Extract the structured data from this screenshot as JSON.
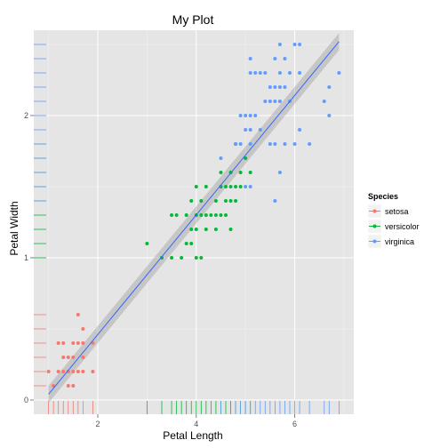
{
  "chart_data": {
    "type": "scatter",
    "title": "My Plot",
    "xlabel": "Petal Length",
    "ylabel": "Petal Width",
    "xlim": [
      0.7,
      7.2
    ],
    "ylim": [
      -0.1,
      2.6
    ],
    "xticks": [
      2,
      4,
      6
    ],
    "yticks": [
      0,
      1,
      2
    ],
    "grid": true,
    "rug": true,
    "trend_line": {
      "x0": 1.0,
      "y0": 0.04,
      "x1": 6.9,
      "y1": 2.52,
      "band": 0.06,
      "color": "#3366ff"
    },
    "legend": {
      "title": "Species",
      "position": "right"
    },
    "series": [
      {
        "name": "setosa",
        "color": "#f8766d",
        "points": [
          [
            1.1,
            0.1
          ],
          [
            1.2,
            0.2
          ],
          [
            1.3,
            0.2
          ],
          [
            1.3,
            0.3
          ],
          [
            1.3,
            0.4
          ],
          [
            1.4,
            0.1
          ],
          [
            1.4,
            0.2
          ],
          [
            1.4,
            0.3
          ],
          [
            1.5,
            0.1
          ],
          [
            1.5,
            0.2
          ],
          [
            1.5,
            0.3
          ],
          [
            1.5,
            0.4
          ],
          [
            1.6,
            0.2
          ],
          [
            1.6,
            0.4
          ],
          [
            1.6,
            0.6
          ],
          [
            1.7,
            0.2
          ],
          [
            1.7,
            0.3
          ],
          [
            1.7,
            0.4
          ],
          [
            1.7,
            0.5
          ],
          [
            1.9,
            0.2
          ],
          [
            1.9,
            0.4
          ],
          [
            1.0,
            0.2
          ],
          [
            1.2,
            0.4
          ]
        ]
      },
      {
        "name": "versicolor",
        "color": "#00ba38",
        "points": [
          [
            3.0,
            1.1
          ],
          [
            3.3,
            1.0
          ],
          [
            3.5,
            1.0
          ],
          [
            3.5,
            1.3
          ],
          [
            3.6,
            1.3
          ],
          [
            3.7,
            1.0
          ],
          [
            3.8,
            1.1
          ],
          [
            3.9,
            1.1
          ],
          [
            3.9,
            1.2
          ],
          [
            3.9,
            1.4
          ],
          [
            4.0,
            1.0
          ],
          [
            4.0,
            1.2
          ],
          [
            4.0,
            1.3
          ],
          [
            4.1,
            1.0
          ],
          [
            4.1,
            1.3
          ],
          [
            4.2,
            1.2
          ],
          [
            4.2,
            1.3
          ],
          [
            4.2,
            1.5
          ],
          [
            4.3,
            1.3
          ],
          [
            4.4,
            1.2
          ],
          [
            4.4,
            1.3
          ],
          [
            4.4,
            1.4
          ],
          [
            4.5,
            1.3
          ],
          [
            4.5,
            1.5
          ],
          [
            4.6,
            1.3
          ],
          [
            4.6,
            1.4
          ],
          [
            4.6,
            1.5
          ],
          [
            4.7,
            1.2
          ],
          [
            4.7,
            1.4
          ],
          [
            4.7,
            1.5
          ],
          [
            4.7,
            1.6
          ],
          [
            4.8,
            1.4
          ],
          [
            4.8,
            1.8
          ],
          [
            4.9,
            1.5
          ],
          [
            5.0,
            1.7
          ],
          [
            5.1,
            1.6
          ],
          [
            4.5,
            1.6
          ],
          [
            4.0,
            1.5
          ],
          [
            4.1,
            1.4
          ],
          [
            3.8,
            1.3
          ],
          [
            4.9,
            1.6
          ],
          [
            4.8,
            1.5
          ]
        ]
      },
      {
        "name": "virginica",
        "color": "#619cff",
        "points": [
          [
            4.5,
            1.7
          ],
          [
            4.8,
            1.8
          ],
          [
            4.9,
            1.8
          ],
          [
            4.9,
            2.0
          ],
          [
            5.0,
            1.5
          ],
          [
            5.0,
            1.9
          ],
          [
            5.0,
            2.0
          ],
          [
            5.1,
            1.5
          ],
          [
            5.1,
            1.8
          ],
          [
            5.1,
            1.9
          ],
          [
            5.1,
            2.0
          ],
          [
            5.1,
            2.3
          ],
          [
            5.1,
            2.4
          ],
          [
            5.2,
            2.0
          ],
          [
            5.2,
            2.3
          ],
          [
            5.3,
            1.9
          ],
          [
            5.3,
            2.3
          ],
          [
            5.4,
            2.1
          ],
          [
            5.4,
            2.3
          ],
          [
            5.5,
            1.8
          ],
          [
            5.5,
            2.1
          ],
          [
            5.5,
            2.2
          ],
          [
            5.6,
            1.4
          ],
          [
            5.6,
            1.8
          ],
          [
            5.6,
            2.1
          ],
          [
            5.6,
            2.2
          ],
          [
            5.6,
            2.4
          ],
          [
            5.7,
            1.6
          ],
          [
            5.7,
            2.1
          ],
          [
            5.7,
            2.2
          ],
          [
            5.7,
            2.3
          ],
          [
            5.7,
            2.5
          ],
          [
            5.8,
            1.8
          ],
          [
            5.8,
            2.2
          ],
          [
            5.8,
            2.4
          ],
          [
            5.9,
            2.1
          ],
          [
            5.9,
            2.3
          ],
          [
            6.0,
            1.8
          ],
          [
            6.0,
            2.5
          ],
          [
            6.1,
            1.9
          ],
          [
            6.1,
            2.3
          ],
          [
            6.1,
            2.5
          ],
          [
            6.3,
            1.8
          ],
          [
            6.6,
            2.1
          ],
          [
            6.7,
            2.0
          ],
          [
            6.7,
            2.2
          ],
          [
            6.9,
            2.3
          ]
        ]
      }
    ]
  }
}
